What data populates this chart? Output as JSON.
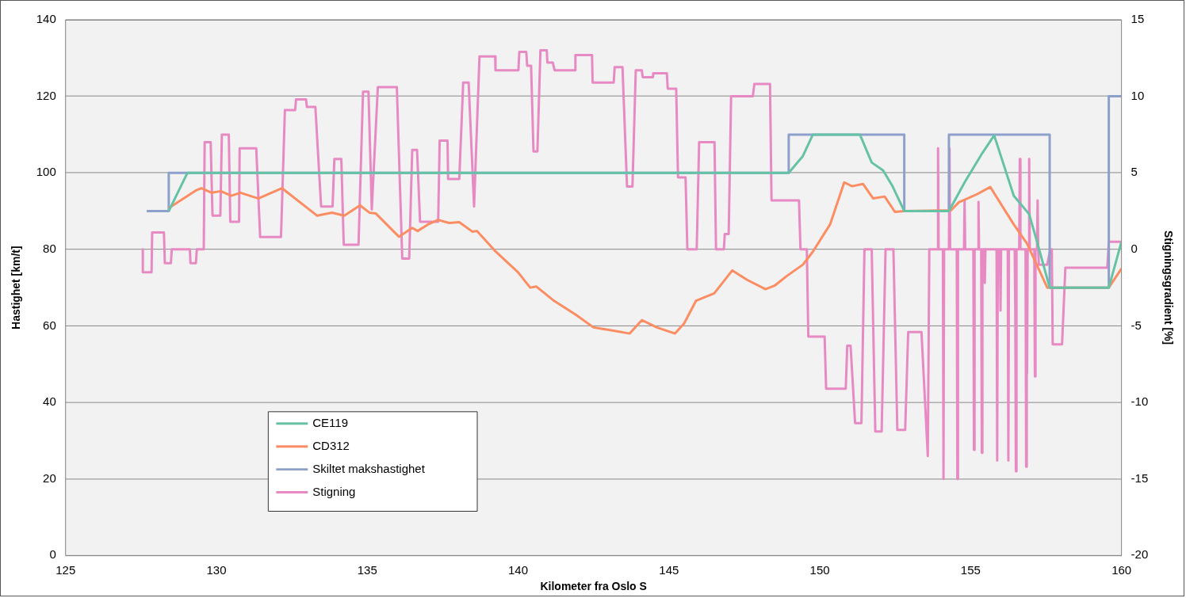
{
  "chart_data": {
    "type": "line",
    "xlabel": "Kilometer fra Oslo S",
    "ylabel": "Hastighet [km/t]",
    "y2label": "Stigningsgradient [%]",
    "xlim": [
      125,
      160
    ],
    "xticks": [
      125,
      130,
      135,
      140,
      145,
      150,
      155,
      160
    ],
    "ylim": [
      0,
      140
    ],
    "yticks": [
      0,
      20,
      40,
      60,
      80,
      100,
      120,
      140
    ],
    "y2lim": [
      -20,
      15
    ],
    "y2ticks": [
      -20,
      -15,
      -10,
      -5,
      0,
      5,
      10,
      15
    ],
    "grid": "y",
    "legend": "bottom left",
    "marker": "none",
    "line_style": "solid",
    "series": [
      {
        "name": "CE119",
        "color": "#66c2a5",
        "x": [
          128.42,
          129.04,
          148.97,
          149.44,
          149.77,
          151.33,
          151.72,
          152.1,
          152.41,
          152.8,
          154.28,
          154.8,
          155.39,
          155.78,
          156.43,
          156.94,
          157.2,
          157.62,
          159.58,
          160
        ],
        "values": [
          90,
          100,
          100,
          104.4,
          110,
          110,
          102.7,
          100.6,
          96.5,
          90,
          90,
          97.5,
          105.2,
          109.8,
          94,
          89.2,
          82,
          70,
          70,
          82
        ]
      },
      {
        "name": "CD312",
        "color": "#fc8d62",
        "x": [
          128.42,
          129.32,
          129.5,
          129.84,
          130.15,
          130.49,
          130.8,
          131.39,
          132.17,
          133.34,
          133.83,
          134.24,
          134.76,
          135.07,
          135.28,
          136.05,
          136.49,
          136.67,
          137.01,
          137.35,
          137.71,
          138.05,
          138.49,
          138.64,
          139.26,
          140.0,
          140.4,
          140.6,
          141.2,
          141.9,
          142.5,
          143.2,
          143.7,
          144.1,
          144.6,
          145.2,
          145.5,
          145.9,
          146.5,
          147.1,
          147.6,
          148.2,
          148.5,
          148.9,
          149.44,
          149.77,
          150.34,
          150.81,
          151.07,
          151.43,
          151.77,
          152.15,
          152.49,
          152.8,
          154.35,
          154.61,
          155.21,
          155.65,
          156.43,
          156.87,
          157.54,
          159.58,
          160
        ],
        "values": [
          90.8,
          95.4,
          96,
          94.8,
          95.2,
          94,
          94.8,
          93.3,
          96,
          88.8,
          89.6,
          88.8,
          91.5,
          89.6,
          89.4,
          83.3,
          85.6,
          84.8,
          86.5,
          87.7,
          86.9,
          87.1,
          84.6,
          84.8,
          79.4,
          74,
          70,
          70.3,
          66.5,
          63,
          59.6,
          58.7,
          58,
          61.5,
          59.6,
          58,
          60.6,
          66.6,
          68.5,
          74.5,
          72,
          69.6,
          70.5,
          73,
          76,
          79.4,
          86.5,
          97.5,
          96.5,
          97.1,
          93.3,
          93.8,
          89.8,
          90,
          90.2,
          92.3,
          94.4,
          96.3,
          86.5,
          81.5,
          70,
          70,
          75
        ]
      },
      {
        "name": "Skiltet makshastighet",
        "color": "#8da0cb",
        "x": [
          127.69,
          128.42,
          128.42,
          148.97,
          148.97,
          152.8,
          152.8,
          154.28,
          154.28,
          157.62,
          157.62,
          159.58,
          159.58,
          160
        ],
        "values": [
          90,
          90,
          100,
          100,
          110,
          110,
          90,
          90,
          110,
          110,
          70,
          70,
          120,
          120
        ]
      },
      {
        "name": "Stigning",
        "color": "#e78ac3",
        "axis": "y2",
        "x": [
          127.56,
          127.56,
          127.85,
          127.87,
          128.26,
          128.29,
          128.49,
          128.52,
          129.12,
          129.14,
          129.32,
          129.35,
          129.58,
          129.61,
          129.81,
          129.87,
          130.13,
          130.18,
          130.41,
          130.46,
          130.75,
          130.77,
          131.32,
          131.45,
          132.14,
          132.27,
          132.61,
          132.64,
          132.97,
          133.0,
          133.28,
          133.47,
          133.85,
          133.91,
          134.14,
          134.22,
          134.71,
          134.86,
          135.04,
          135.15,
          135.35,
          135.98,
          136.16,
          136.39,
          136.49,
          136.65,
          136.75,
          137.35,
          137.4,
          137.66,
          137.68,
          138.05,
          138.18,
          138.36,
          138.54,
          138.72,
          139.24,
          139.25,
          140.01,
          140.04,
          140.27,
          140.3,
          140.43,
          140.51,
          140.64,
          140.74,
          140.95,
          140.97,
          141.15,
          141.21,
          141.88,
          141.9,
          142.45,
          142.47,
          143.17,
          143.2,
          143.46,
          143.61,
          143.79,
          143.9,
          144.1,
          144.13,
          144.47,
          144.48,
          144.93,
          144.96,
          145.24,
          145.3,
          145.55,
          145.61,
          145.92,
          146.0,
          146.51,
          146.56,
          146.82,
          146.85,
          146.98,
          147.06,
          147.78,
          147.83,
          148.35,
          148.4,
          149.31,
          149.36,
          149.57,
          149.62,
          150.16,
          150.21,
          150.86,
          150.91,
          151.02,
          151.17,
          151.38,
          151.48,
          151.72,
          151.84,
          152.05,
          152.18,
          152.44,
          152.57,
          152.83,
          152.93,
          153.37,
          153.58,
          153.63,
          153.9,
          153.92,
          153.94,
          154.08,
          154.1,
          154.12,
          154.28,
          154.3,
          154.32,
          154.54,
          154.56,
          154.58,
          154.78,
          154.8,
          154.82,
          155.09,
          155.11,
          155.13,
          155.24,
          155.26,
          155.28,
          155.35,
          155.37,
          155.39,
          155.45,
          155.47,
          155.49,
          155.86,
          155.88,
          155.9,
          155.97,
          155.99,
          156.01,
          156.23,
          156.25,
          156.27,
          156.46,
          156.48,
          156.5,
          156.52,
          156.61,
          156.63,
          156.65,
          156.82,
          156.84,
          156.86,
          156.87,
          156.89,
          156.92,
          156.94,
          156.96,
          157.11,
          157.13,
          157.15,
          157.2,
          157.22,
          157.24,
          157.26,
          157.54,
          157.64,
          157.69,
          157.72,
          158.03,
          158.14,
          159.53,
          159.58,
          160.0
        ],
        "values": [
          0,
          -1.5,
          -1.5,
          1.1,
          1.1,
          -0.9,
          -0.9,
          0,
          0,
          -0.9,
          -0.9,
          0,
          0,
          7.0,
          7.0,
          2.2,
          2.2,
          7.5,
          7.5,
          1.8,
          1.8,
          6.6,
          6.6,
          0.8,
          0.8,
          9.1,
          9.1,
          9.8,
          9.8,
          9.3,
          9.3,
          2.8,
          2.8,
          5.9,
          5.9,
          0.3,
          0.3,
          10.3,
          10.3,
          2.6,
          10.6,
          10.6,
          -0.6,
          -0.6,
          6.5,
          6.5,
          1.8,
          1.8,
          7.1,
          7.1,
          4.6,
          4.6,
          10.9,
          10.9,
          2.8,
          12.6,
          12.6,
          11.7,
          11.7,
          12.9,
          12.9,
          12.0,
          12.0,
          6.4,
          6.4,
          13.0,
          13.0,
          12.2,
          12.2,
          11.7,
          11.7,
          12.7,
          12.7,
          10.9,
          10.9,
          11.9,
          11.9,
          4.1,
          4.1,
          11.7,
          11.7,
          11.25,
          11.25,
          11.5,
          11.5,
          10.5,
          10.5,
          4.7,
          4.7,
          0,
          0,
          7.0,
          7.0,
          0,
          0,
          1.0,
          1.0,
          10,
          10,
          10.8,
          10.8,
          3.2,
          3.2,
          0,
          0,
          -5.7,
          -5.7,
          -9.1,
          -9.1,
          -6.3,
          -6.3,
          -11.35,
          -11.35,
          0,
          0,
          -11.9,
          -11.9,
          0,
          0,
          -11.8,
          -11.8,
          -5.4,
          -5.4,
          -13.5,
          0,
          0,
          6.6,
          0,
          0,
          -15,
          0,
          0,
          6.6,
          0,
          0,
          -15,
          0,
          0,
          3.2,
          0,
          0,
          -13.1,
          0,
          0,
          3.1,
          0,
          0,
          -13.3,
          0,
          0,
          -2.2,
          0,
          0,
          -13.8,
          0,
          0,
          -4.0,
          0,
          0,
          -13.8,
          0,
          0,
          -4.0,
          -14.5,
          0,
          0,
          5.9,
          0,
          0,
          -14.2,
          0,
          -8.1,
          0,
          0,
          5.9,
          0,
          0,
          -8.3,
          0,
          0,
          3.2,
          0,
          -1.0,
          -1.0,
          0,
          0,
          -6.2,
          -6.2,
          -1.2,
          -1.2,
          0.5,
          0.5
        ]
      }
    ]
  }
}
